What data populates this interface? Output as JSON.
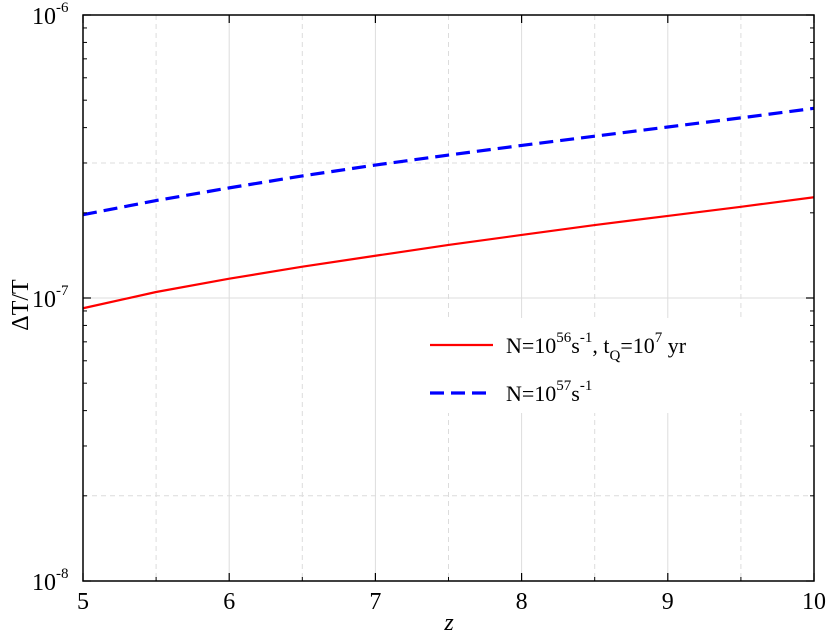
{
  "chart_data": {
    "type": "line",
    "xlabel": "z",
    "ylabel": "ΔT/T",
    "xlim": [
      5,
      10
    ],
    "ylim": [
      1e-08,
      1e-06
    ],
    "yscale": "log",
    "x_ticks": [
      "5",
      "6",
      "7",
      "8",
      "9",
      "10"
    ],
    "y_ticks": [
      {
        "base": "10",
        "exp": "-8"
      },
      {
        "base": "10",
        "exp": "-7"
      },
      {
        "base": "10",
        "exp": "-6"
      }
    ],
    "grid": true,
    "legend_position": "center-right",
    "series": [
      {
        "legend": {
          "a": "N=10",
          "a_sup": "56",
          "b": "s",
          "b_sup": "-1",
          "c": ", t",
          "c_sub": "Q",
          "d": "=10",
          "d_sup": "7",
          "e": " yr"
        },
        "color": "#ff0000",
        "style": "solid",
        "x": [
          5,
          5.5,
          6,
          6.5,
          7,
          7.5,
          8,
          8.5,
          9,
          9.5,
          10
        ],
        "y": [
          9.2e-08,
          1.05e-07,
          1.17e-07,
          1.29e-07,
          1.41e-07,
          1.54e-07,
          1.67e-07,
          1.81e-07,
          1.95e-07,
          2.1e-07,
          2.27e-07
        ]
      },
      {
        "legend": {
          "a": "N=10",
          "a_sup": "57",
          "b": "s",
          "b_sup": "-1"
        },
        "color": "#0000ff",
        "style": "dashed",
        "x": [
          5,
          5.5,
          6,
          6.5,
          7,
          7.5,
          8,
          8.5,
          9,
          9.5,
          10
        ],
        "y": [
          1.97e-07,
          2.21e-07,
          2.45e-07,
          2.7e-07,
          2.95e-07,
          3.2e-07,
          3.46e-07,
          3.73e-07,
          4.02e-07,
          4.33e-07,
          4.68e-07
        ]
      }
    ]
  }
}
